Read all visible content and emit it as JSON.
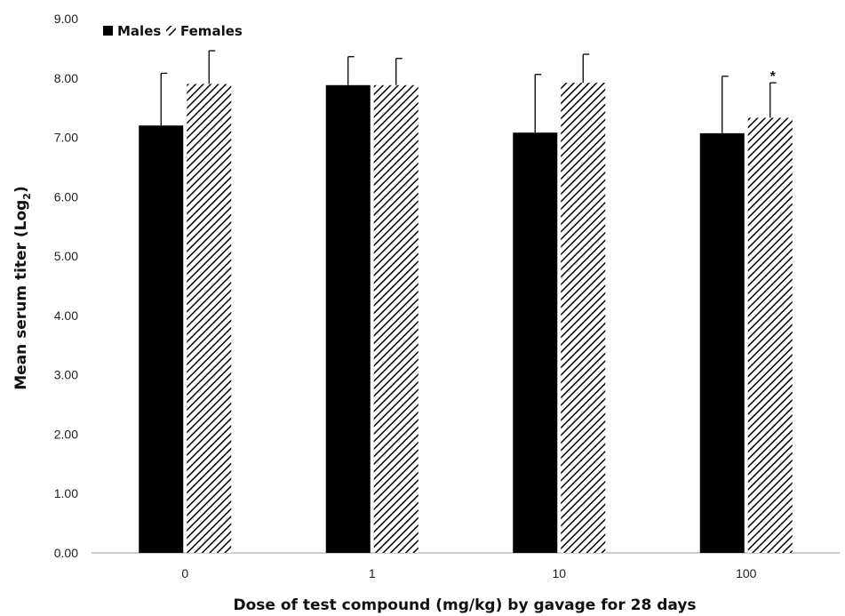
{
  "chart_data": {
    "type": "bar",
    "xlabel": "Dose of test compound (mg/kg) by gavage for 28 days",
    "ylabel": "Mean serum titer (Log",
    "ylabel_subscript": "2",
    "ylabel_close": ")",
    "ylim": [
      0,
      9
    ],
    "yticks": [
      "0.00",
      "1.00",
      "2.00",
      "3.00",
      "4.00",
      "5.00",
      "6.00",
      "7.00",
      "8.00",
      "9.00"
    ],
    "categories": [
      "0",
      "1",
      "10",
      "100"
    ],
    "legend_position": "top-left",
    "series": [
      {
        "name": "Males",
        "fill": "solid",
        "color": "#000000",
        "values": [
          7.2,
          7.88,
          7.08,
          7.07
        ],
        "error_upper": [
          8.08,
          8.36,
          8.06,
          8.03
        ]
      },
      {
        "name": "Females",
        "fill": "diagonal-hatch",
        "color": "#000000",
        "values": [
          7.9,
          7.88,
          7.92,
          7.33
        ],
        "error_upper": [
          8.46,
          8.33,
          8.4,
          7.92
        ]
      }
    ],
    "annotations": [
      {
        "text": "*",
        "series": "Females",
        "category": "100"
      }
    ]
  }
}
